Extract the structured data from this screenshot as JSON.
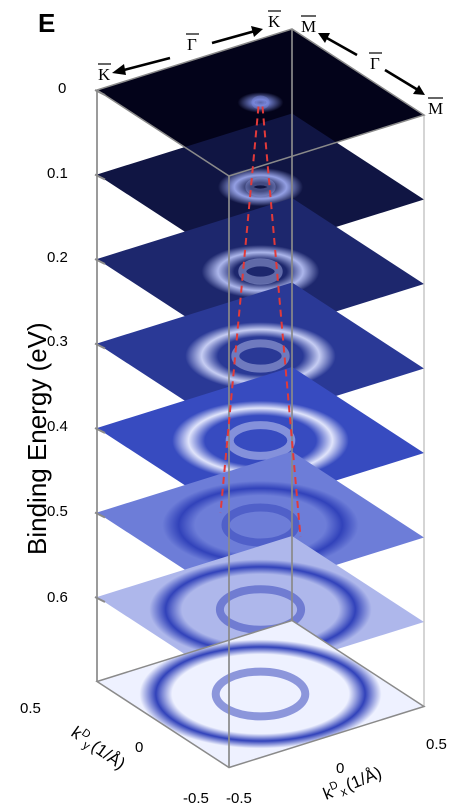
{
  "figure": {
    "panel_letter": "E",
    "ylabel": "Binding Energy (eV)",
    "kx_label": "k",
    "kx_sup": "D",
    "kx_sub": "x",
    "kx_unit": "(1/Å)",
    "ky_label": "k",
    "ky_sup": "D",
    "ky_sub": "y",
    "ky_unit": "(1/Å)",
    "energy_ticks": [
      "0",
      "0.1",
      "0.2",
      "0.3",
      "0.4",
      "0.5",
      "0.6"
    ],
    "ky_ticks": [
      "0.5",
      "0",
      "-0.5"
    ],
    "kx_ticks": [
      "-0.5",
      "0",
      "0.5"
    ],
    "direction_labels": {
      "K_left": "K",
      "Gamma_left": "Γ",
      "K_right": "K",
      "M_top": "M",
      "Gamma_right": "Γ",
      "M_bottom": "M"
    },
    "colors": {
      "frame": "#8a8a8a",
      "guide_line": "#e23a3a",
      "cmap_dark": "#03031a",
      "cmap_mid": "#3a4fc8",
      "cmap_light": "#eef1ff"
    }
  },
  "chart_data": {
    "type": "stacked-constant-energy-maps",
    "xlabel": "kDx (1/Å)",
    "ylabel": "Binding Energy (eV)",
    "zlabel": "kDy (1/Å)",
    "x_ticks": [
      -0.5,
      0,
      0.5
    ],
    "y_ticks": [
      0.5,
      0,
      -0.5
    ],
    "energy_ticks": [
      0,
      0.1,
      0.2,
      0.3,
      0.4,
      0.5,
      0.6
    ],
    "layers": [
      {
        "energy": 0.0,
        "ring_radius": 0.02,
        "intensity": 0.55
      },
      {
        "energy": 0.1,
        "ring_radius": 0.08,
        "intensity": 0.45
      },
      {
        "energy": 0.2,
        "ring_radius": 0.13,
        "intensity": 0.7
      },
      {
        "energy": 0.3,
        "ring_radius": 0.18,
        "intensity": 0.6
      },
      {
        "energy": 0.4,
        "ring_radius": 0.22,
        "intensity": 0.65
      },
      {
        "energy": 0.5,
        "ring_radius": 0.25,
        "intensity": 0.75
      },
      {
        "energy": 0.6,
        "ring_radius": 0.29,
        "intensity": 0.8
      },
      {
        "energy": 0.7,
        "ring_radius": 0.32,
        "intensity": 0.85
      }
    ]
  }
}
